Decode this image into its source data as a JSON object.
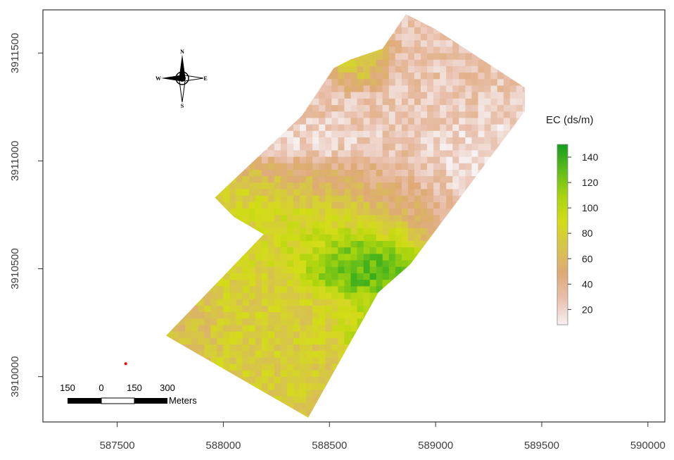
{
  "chart_data": {
    "type": "heatmap",
    "xlim": [
      587150,
      590080
    ],
    "ylim": [
      3909790,
      3911700
    ],
    "x_ticks": [
      587500,
      588000,
      588500,
      589000,
      589500,
      590000
    ],
    "y_ticks": [
      3910000,
      3910500,
      3911000,
      3911500
    ],
    "x_tick_labels": [
      "587500",
      "588000",
      "588500",
      "589000",
      "589500",
      "590000"
    ],
    "y_tick_labels": [
      "3910000",
      "3910500",
      "3911000",
      "3911500"
    ],
    "legend": {
      "title": "EC (ds/m)",
      "range": [
        8,
        150
      ],
      "ticks": [
        20,
        40,
        60,
        80,
        100,
        120,
        140
      ],
      "tick_labels": [
        "20",
        "40",
        "60",
        "80",
        "100",
        "120",
        "140"
      ],
      "colors": [
        "#f6f1f2",
        "#e9c0ad",
        "#deaa75",
        "#d7c44b",
        "#d4dc18",
        "#a8d40e",
        "#5ebc1a",
        "#159e1e"
      ],
      "placement": "right"
    },
    "field_polygon": [
      [
        588860,
        3911680
      ],
      [
        589000,
        3911610
      ],
      [
        589420,
        3911340
      ],
      [
        589420,
        3911230
      ],
      [
        588880,
        3910520
      ],
      [
        588730,
        3910390
      ],
      [
        588400,
        3909810
      ],
      [
        587730,
        3910190
      ],
      [
        588190,
        3910660
      ],
      [
        588050,
        3910740
      ],
      [
        587960,
        3910830
      ],
      [
        588370,
        3911210
      ],
      [
        588520,
        3911430
      ],
      [
        588600,
        3911470
      ],
      [
        588750,
        3911520
      ]
    ],
    "zones": [
      {
        "x": 588600,
        "y": 3910530,
        "rx": 150,
        "ry": 110,
        "ec": 135
      },
      {
        "x": 588680,
        "y": 3910200,
        "rx": 90,
        "ry": 90,
        "ec": 110
      },
      {
        "x": 588500,
        "y": 3910720,
        "rx": 230,
        "ry": 160,
        "ec": 90
      },
      {
        "x": 588200,
        "y": 3910150,
        "rx": 350,
        "ry": 260,
        "ec": 78
      },
      {
        "x": 587850,
        "y": 3910200,
        "rx": 110,
        "ry": 130,
        "ec": 60
      },
      {
        "x": 588100,
        "y": 3910600,
        "rx": 170,
        "ry": 120,
        "ec": 82
      },
      {
        "x": 588450,
        "y": 3909970,
        "rx": 200,
        "ry": 120,
        "ec": 72
      },
      {
        "x": 588650,
        "y": 3911450,
        "rx": 100,
        "ry": 80,
        "ec": 78
      },
      {
        "x": 588650,
        "y": 3910900,
        "rx": 260,
        "ry": 150,
        "ec": 45
      },
      {
        "x": 588900,
        "y": 3911200,
        "rx": 320,
        "ry": 240,
        "ec": 28
      },
      {
        "x": 588550,
        "y": 3911080,
        "rx": 200,
        "ry": 80,
        "ec": 15
      },
      {
        "x": 589150,
        "y": 3911050,
        "rx": 220,
        "ry": 120,
        "ec": 12
      }
    ],
    "outlier_point": {
      "x": 587540,
      "y": 3910060
    },
    "scale_bar": {
      "labels": [
        "150",
        "0",
        "150",
        "300"
      ],
      "unit": "Meters"
    },
    "compass": {
      "north": "N",
      "south": "S",
      "east": "E",
      "west": "W"
    }
  },
  "colors": {
    "outlier": "#ff0000",
    "frame": "#333333"
  }
}
